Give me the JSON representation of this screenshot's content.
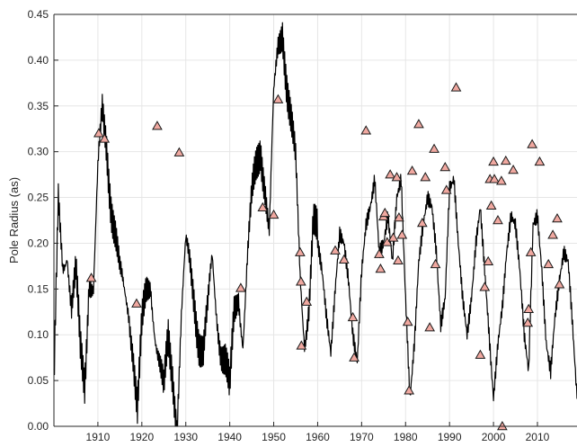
{
  "chart_data": {
    "type": "line",
    "title": "",
    "xlabel": "",
    "ylabel": "Pole Radius (as)",
    "xlim": [
      1900,
      2019
    ],
    "ylim": [
      0,
      0.45
    ],
    "grid": true,
    "legend": "none",
    "x_ticks": [
      1910,
      1920,
      1930,
      1940,
      1950,
      1960,
      1970,
      1980,
      1990,
      2000,
      2010
    ],
    "y_ticks": [
      0.0,
      0.05,
      0.1,
      0.15,
      0.2,
      0.25,
      0.3,
      0.35,
      0.4,
      0.45
    ],
    "x_tick_labels": [
      "1910",
      "1920",
      "1930",
      "1940",
      "1950",
      "1960",
      "1970",
      "1980",
      "1990",
      "2000",
      "2010"
    ],
    "y_tick_labels": [
      "0.00",
      "0.05",
      "0.10",
      "0.15",
      "0.20",
      "0.25",
      "0.30",
      "0.35",
      "0.40",
      "0.45"
    ],
    "line_color": "#000000",
    "marker_fill": "#f0a8a0",
    "marker_edge": "#1a1a1a",
    "series": [
      {
        "type": "line",
        "x": [
          1900,
          1901,
          1902,
          1903,
          1904,
          1905,
          1906,
          1907,
          1908,
          1909,
          1910,
          1911,
          1912,
          1913,
          1914,
          1915,
          1916,
          1917,
          1918,
          1919,
          1920,
          1921,
          1922,
          1923,
          1924,
          1925,
          1926,
          1927,
          1928,
          1929,
          1930,
          1931,
          1932,
          1933,
          1934,
          1935,
          1936,
          1937,
          1938,
          1939,
          1940,
          1941,
          1942,
          1943,
          1944,
          1945,
          1946,
          1947,
          1948,
          1949,
          1950,
          1951,
          1952,
          1953,
          1954,
          1955,
          1956,
          1957,
          1958,
          1959,
          1960,
          1961,
          1962,
          1963,
          1964,
          1965,
          1966,
          1967,
          1968,
          1969,
          1970,
          1971,
          1972,
          1973,
          1974,
          1975,
          1976,
          1977,
          1978,
          1979,
          1980,
          1981,
          1982,
          1983,
          1984,
          1985,
          1986,
          1987,
          1988,
          1989,
          1990,
          1991,
          1992,
          1993,
          1994,
          1995,
          1996,
          1997,
          1998,
          1999,
          2000,
          2001,
          2002,
          2003,
          2004,
          2005,
          2006,
          2007,
          2008,
          2009,
          2010,
          2011,
          2012,
          2013,
          2014,
          2015,
          2016,
          2017,
          2018,
          2019
        ],
        "y": [
          0.03,
          0.24,
          0.18,
          0.2,
          0.13,
          0.16,
          0.08,
          0.05,
          0.17,
          0.15,
          0.27,
          0.34,
          0.31,
          0.25,
          0.21,
          0.16,
          0.14,
          0.13,
          0.09,
          0.02,
          0.1,
          0.14,
          0.16,
          0.11,
          0.07,
          0.03,
          0.09,
          0.06,
          0.01,
          0.12,
          0.19,
          0.17,
          0.14,
          0.1,
          0.08,
          0.12,
          0.18,
          0.13,
          0.09,
          0.07,
          0.03,
          0.12,
          0.15,
          0.1,
          0.18,
          0.24,
          0.28,
          0.31,
          0.27,
          0.21,
          0.35,
          0.41,
          0.44,
          0.38,
          0.33,
          0.28,
          0.16,
          0.1,
          0.14,
          0.22,
          0.2,
          0.17,
          0.12,
          0.08,
          0.15,
          0.21,
          0.2,
          0.16,
          0.1,
          0.07,
          0.17,
          0.22,
          0.24,
          0.27,
          0.19,
          0.2,
          0.23,
          0.18,
          0.25,
          0.27,
          0.14,
          0.03,
          0.09,
          0.18,
          0.22,
          0.25,
          0.24,
          0.19,
          0.11,
          0.14,
          0.26,
          0.27,
          0.2,
          0.14,
          0.1,
          0.14,
          0.2,
          0.24,
          0.17,
          0.1,
          0.03,
          0.09,
          0.13,
          0.19,
          0.23,
          0.22,
          0.17,
          0.1,
          0.06,
          0.22,
          0.23,
          0.17,
          0.09,
          0.06,
          0.12,
          0.16,
          0.19,
          0.18,
          0.11,
          0.03
        ]
      },
      {
        "type": "scatter",
        "marker": "triangle",
        "x": [
          1908.5,
          1910.2,
          1911.5,
          1918.8,
          1923.5,
          1928.5,
          1942.5,
          1947.5,
          1950.0,
          1951.0,
          1956.0,
          1956.2,
          1956.3,
          1957.5,
          1964.0,
          1966.0,
          1968.0,
          1968.3,
          1971.0,
          1974.0,
          1974.3,
          1975.0,
          1975.3,
          1975.8,
          1976.5,
          1977.2,
          1978.0,
          1978.3,
          1978.5,
          1979.2,
          1980.5,
          1980.8,
          1981.5,
          1983.0,
          1983.8,
          1984.5,
          1985.5,
          1986.5,
          1986.8,
          1989.0,
          1989.3,
          1991.5,
          1997.0,
          1998.0,
          1998.8,
          1999.2,
          1999.5,
          2000.0,
          2000.2,
          2001.0,
          2001.8,
          2002.0,
          2002.8,
          2004.5,
          2007.8,
          2008.0,
          2008.5,
          2008.8,
          2010.5,
          2012.5,
          2013.5,
          2014.5,
          2015.0
        ],
        "y": [
          0.162,
          0.32,
          0.314,
          0.134,
          0.328,
          0.299,
          0.151,
          0.239,
          0.231,
          0.357,
          0.19,
          0.158,
          0.088,
          0.136,
          0.192,
          0.182,
          0.119,
          0.075,
          0.323,
          0.188,
          0.172,
          0.229,
          0.233,
          0.201,
          0.275,
          0.206,
          0.272,
          0.181,
          0.228,
          0.209,
          0.114,
          0.039,
          0.279,
          0.33,
          0.222,
          0.272,
          0.108,
          0.303,
          0.177,
          0.283,
          0.258,
          0.37,
          0.078,
          0.152,
          0.18,
          0.27,
          0.241,
          0.289,
          0.27,
          0.225,
          0.268,
          0.0,
          0.29,
          0.28,
          0.113,
          0.128,
          0.19,
          0.308,
          0.289,
          0.177,
          0.209,
          0.227,
          0.155
        ]
      }
    ]
  }
}
